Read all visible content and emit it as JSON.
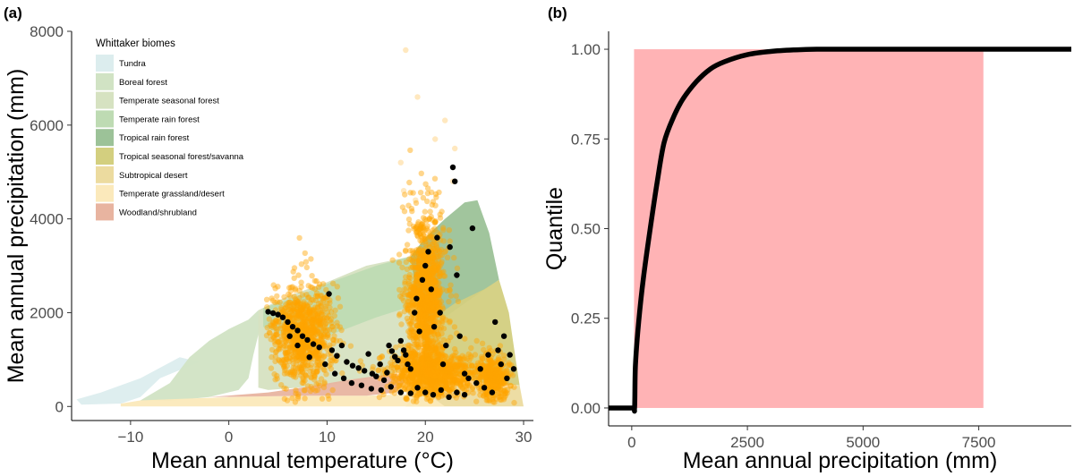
{
  "chart_data": [
    {
      "panel_label": "(a)",
      "type": "scatter",
      "title": "",
      "xlabel": "Mean annual temperature (°C)",
      "ylabel": "Mean annual precipitation (mm)",
      "xlim": [
        -16,
        31
      ],
      "ylim": [
        -300,
        8000
      ],
      "x_ticks": [
        -10,
        0,
        10,
        20,
        30
      ],
      "y_ticks": [
        0,
        2000,
        4000,
        6000,
        8000
      ],
      "grid": false,
      "legend_position": "top-left",
      "legend": {
        "title": "Whittaker biomes",
        "entries": [
          {
            "name": "Tundra",
            "color": "#dcedee"
          },
          {
            "name": "Boreal forest",
            "color": "#d1e3c4"
          },
          {
            "name": "Temperate seasonal forest",
            "color": "#d6e2c1"
          },
          {
            "name": "Temperate rain forest",
            "color": "#bedbb3"
          },
          {
            "name": "Tropical rain forest",
            "color": "#9cc298"
          },
          {
            "name": "Tropical seasonal forest/savanna",
            "color": "#d3cf7f"
          },
          {
            "name": "Subtropical desert",
            "color": "#ecdb9f"
          },
          {
            "name": "Temperate grassland/desert",
            "color": "#fbe9bb"
          },
          {
            "name": "Woodland/shrubland",
            "color": "#e8b4a0"
          }
        ]
      },
      "biome_polygons": [
        {
          "name": "Tundra",
          "color": "#dcedee",
          "points": [
            [
              -15.5,
              150
            ],
            [
              -13,
              300
            ],
            [
              -9,
              600
            ],
            [
              -5,
              1050
            ],
            [
              -3,
              950
            ],
            [
              -7,
              600
            ],
            [
              -9,
              200
            ],
            [
              -11,
              60
            ],
            [
              -15,
              40
            ]
          ]
        },
        {
          "name": "Boreal forest",
          "color": "#d1e3c4",
          "points": [
            [
              -9,
              130
            ],
            [
              -6,
              500
            ],
            [
              -4,
              1050
            ],
            [
              -2,
              1400
            ],
            [
              0,
              1650
            ],
            [
              2,
              1850
            ],
            [
              3,
              2050
            ],
            [
              3.2,
              1700
            ],
            [
              2.5,
              1100
            ],
            [
              2,
              600
            ],
            [
              1,
              350
            ],
            [
              -2,
              200
            ],
            [
              -6,
              120
            ]
          ]
        },
        {
          "name": "Temperate seasonal forest",
          "color": "#d6e2c1",
          "points": [
            [
              3,
              2050
            ],
            [
              6,
              2350
            ],
            [
              10,
              2650
            ],
            [
              14,
              3000
            ],
            [
              18.5,
              3200
            ],
            [
              19.5,
              2200
            ],
            [
              19.5,
              900
            ],
            [
              16,
              650
            ],
            [
              10,
              450
            ],
            [
              4,
              350
            ],
            [
              3,
              400
            ]
          ]
        },
        {
          "name": "Temperate rain forest",
          "color": "#bedbb3",
          "points": [
            [
              3.5,
              2100
            ],
            [
              7,
              2350
            ],
            [
              11,
              2700
            ],
            [
              15,
              3000
            ],
            [
              18.5,
              3200
            ],
            [
              19,
              2800
            ],
            [
              19.5,
              2200
            ],
            [
              15,
              1900
            ],
            [
              10,
              1500
            ],
            [
              6,
              1500
            ],
            [
              3.5,
              1700
            ]
          ]
        },
        {
          "name": "Tropical rain forest",
          "color": "#9cc298",
          "points": [
            [
              18.5,
              3200
            ],
            [
              20,
              3600
            ],
            [
              22,
              4000
            ],
            [
              24,
              4350
            ],
            [
              25.3,
              4400
            ],
            [
              26.5,
              3700
            ],
            [
              27.5,
              2700
            ],
            [
              24,
              2200
            ],
            [
              22,
              1900
            ],
            [
              20,
              1700
            ],
            [
              19,
              2500
            ]
          ]
        },
        {
          "name": "Tropical seasonal forest/savanna",
          "color": "#d3cf7f",
          "points": [
            [
              19.5,
              1700
            ],
            [
              23,
              2200
            ],
            [
              26,
              2500
            ],
            [
              27.5,
              2700
            ],
            [
              28.5,
              2000
            ],
            [
              29.2,
              1000
            ],
            [
              29.6,
              450
            ],
            [
              26,
              500
            ],
            [
              22,
              700
            ],
            [
              20,
              900
            ]
          ]
        },
        {
          "name": "Subtropical desert",
          "color": "#ecdb9f",
          "points": [
            [
              19.5,
              900
            ],
            [
              20,
              650
            ],
            [
              22,
              550
            ],
            [
              24,
              480
            ],
            [
              26,
              430
            ],
            [
              28,
              400
            ],
            [
              29.6,
              450
            ],
            [
              30,
              0
            ],
            [
              18,
              0
            ],
            [
              19,
              300
            ]
          ]
        },
        {
          "name": "Temperate grassland/desert",
          "color": "#fbe9bb",
          "points": [
            [
              -11,
              60
            ],
            [
              -9,
              130
            ],
            [
              -4,
              170
            ],
            [
              2,
              210
            ],
            [
              8,
              230
            ],
            [
              14,
              230
            ],
            [
              18,
              260
            ],
            [
              20,
              300
            ],
            [
              22,
              0
            ],
            [
              -11,
              0
            ]
          ]
        },
        {
          "name": "Woodland/shrubland",
          "color": "#e8b4a0",
          "points": [
            [
              -2,
              200
            ],
            [
              4,
              300
            ],
            [
              8,
              420
            ],
            [
              12,
              560
            ],
            [
              15,
              650
            ],
            [
              17,
              700
            ],
            [
              18,
              550
            ],
            [
              17,
              300
            ],
            [
              14,
              230
            ],
            [
              8,
              230
            ],
            [
              2,
              210
            ]
          ]
        }
      ],
      "series": [
        {
          "name": "",
          "color": "#ffa500",
          "clouds": [
            {
              "center": [
                7.5,
                1500
              ],
              "spread": [
                3,
                1100
              ],
              "count": 900
            },
            {
              "center": [
                20,
                2300
              ],
              "spread": [
                2,
                1800
              ],
              "count": 1100
            },
            {
              "center": [
                21,
                700
              ],
              "spread": [
                5,
                450
              ],
              "count": 900
            },
            {
              "center": [
                27,
                600
              ],
              "spread": [
                1.5,
                500
              ],
              "count": 300
            }
          ],
          "sample_points": [
            [
              18,
              7600
            ],
            [
              19.2,
              6600
            ],
            [
              22,
              6100
            ],
            [
              21,
              5700
            ],
            [
              23,
              5500
            ],
            [
              17.5,
              5200
            ],
            [
              22.8,
              4800
            ],
            [
              17.8,
              4600
            ],
            [
              19,
              4400
            ]
          ]
        },
        {
          "name": "",
          "color": "#000000",
          "points": [
            [
              4,
              2020
            ],
            [
              4.5,
              1990
            ],
            [
              5,
              1960
            ],
            [
              5.5,
              1900
            ],
            [
              6,
              1800
            ],
            [
              6.5,
              1700
            ],
            [
              7,
              1620
            ],
            [
              7.5,
              1500
            ],
            [
              8,
              1420
            ],
            [
              8.6,
              1330
            ],
            [
              9.2,
              1260
            ],
            [
              10.2,
              2400
            ],
            [
              10.5,
              1200
            ],
            [
              11,
              1080
            ],
            [
              11.5,
              1300
            ],
            [
              12,
              950
            ],
            [
              12.6,
              870
            ],
            [
              13.2,
              820
            ],
            [
              13.8,
              760
            ],
            [
              14.2,
              1120
            ],
            [
              14.6,
              700
            ],
            [
              15,
              640
            ],
            [
              15.4,
              900
            ],
            [
              15.8,
              560
            ],
            [
              16.1,
              720
            ],
            [
              16.3,
              1300
            ],
            [
              16.6,
              1180
            ],
            [
              16.9,
              1060
            ],
            [
              17.2,
              980
            ],
            [
              17.5,
              1400
            ],
            [
              17.8,
              1200
            ],
            [
              18,
              1100
            ],
            [
              18.2,
              900
            ],
            [
              18.5,
              800
            ],
            [
              18.9,
              2000
            ],
            [
              19.1,
              2300
            ],
            [
              19.4,
              1600
            ],
            [
              19.7,
              2700
            ],
            [
              20,
              3000
            ],
            [
              20.3,
              3300
            ],
            [
              20.6,
              2500
            ],
            [
              20.9,
              1700
            ],
            [
              21.2,
              3600
            ],
            [
              21.5,
              2000
            ],
            [
              21.8,
              900
            ],
            [
              22.1,
              1300
            ],
            [
              22.5,
              3400
            ],
            [
              22.8,
              5100
            ],
            [
              23,
              4800
            ],
            [
              23.2,
              2800
            ],
            [
              23.5,
              1500
            ],
            [
              24,
              700
            ],
            [
              24.4,
              600
            ],
            [
              24.8,
              3800
            ],
            [
              25.2,
              500
            ],
            [
              25.6,
              800
            ],
            [
              26,
              400
            ],
            [
              26.4,
              1100
            ],
            [
              26.8,
              300
            ],
            [
              27.1,
              1800
            ],
            [
              27.4,
              1200
            ],
            [
              27.7,
              900
            ],
            [
              28,
              1500
            ],
            [
              28.3,
              600
            ],
            [
              28.6,
              1100
            ],
            [
              29,
              800
            ],
            [
              19.2,
              400
            ],
            [
              20,
              300
            ],
            [
              20.8,
              250
            ],
            [
              21.6,
              350
            ],
            [
              22.4,
              200
            ],
            [
              23.2,
              300
            ],
            [
              24,
              250
            ],
            [
              12.5,
              500
            ],
            [
              13.5,
              450
            ],
            [
              14.5,
              380
            ],
            [
              15.5,
              350
            ],
            [
              16.5,
              420
            ],
            [
              17.5,
              300
            ],
            [
              18.5,
              280
            ],
            [
              9.8,
              900
            ],
            [
              10.8,
              700
            ],
            [
              8.2,
              1050
            ],
            [
              7,
              1300
            ],
            [
              6.2,
              1500
            ],
            [
              11.7,
              600
            ]
          ]
        }
      ]
    },
    {
      "panel_label": "(b)",
      "type": "line",
      "title": "",
      "xlabel": "Mean annual precipitation (mm)",
      "ylabel": "Quantile",
      "xlim": [
        -500,
        9500
      ],
      "ylim": [
        -0.05,
        1.05
      ],
      "x_ticks": [
        0,
        2500,
        5000,
        7500
      ],
      "y_ticks": [
        0.0,
        0.25,
        0.5,
        0.75,
        1.0
      ],
      "y_tick_labels": [
        "0.00",
        "0.25",
        "0.50",
        "0.75",
        "1.00"
      ],
      "x_tick_labels": [
        "0",
        "2500",
        "5000",
        "7500"
      ],
      "grid": false,
      "shaded_region": {
        "x": [
          50,
          7600
        ],
        "y": [
          0,
          1
        ],
        "color": "#ffb3b5"
      },
      "series": [
        {
          "name": "",
          "color": "#000000",
          "x": [
            -500,
            0,
            60,
            80,
            150,
            250,
            400,
            550,
            700,
            900,
            1100,
            1400,
            1700,
            2000,
            2500,
            3000,
            3500,
            4000,
            5000,
            6000,
            7500,
            9500
          ],
          "y": [
            0,
            0,
            0,
            0.12,
            0.24,
            0.36,
            0.5,
            0.63,
            0.74,
            0.81,
            0.86,
            0.91,
            0.945,
            0.965,
            0.985,
            0.994,
            0.998,
            1,
            1,
            1,
            1,
            1
          ]
        }
      ]
    }
  ]
}
